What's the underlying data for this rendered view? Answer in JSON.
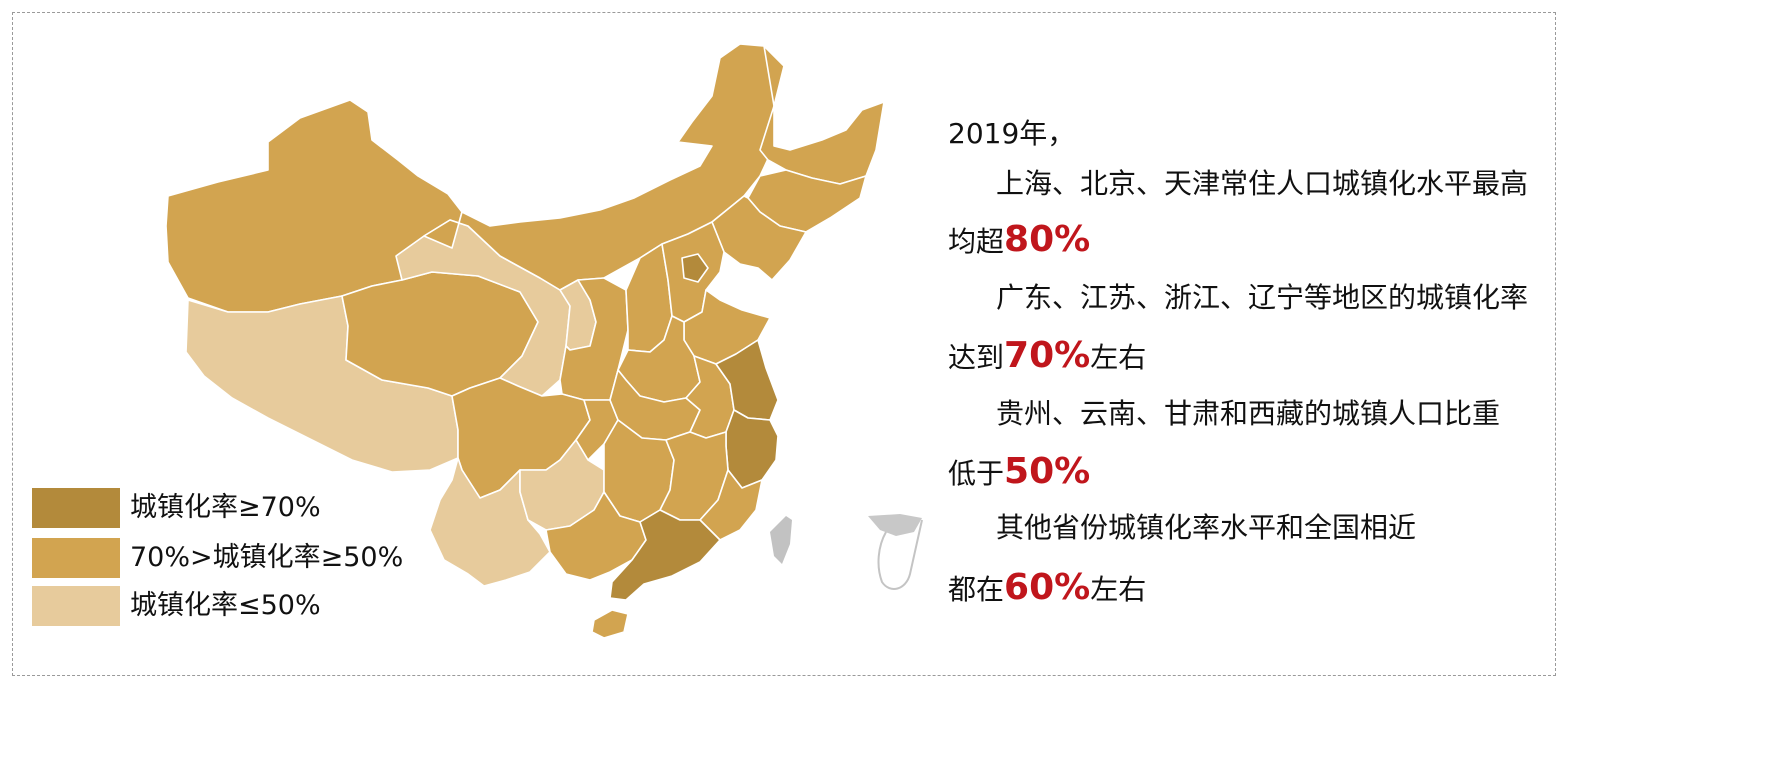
{
  "colors": {
    "level_high": "#b38a3b",
    "level_mid": "#d2a450",
    "level_low": "#e7cb9c",
    "border": "#ffffff",
    "taiwan": "#c2c2c2",
    "highlight": "#c0161c",
    "frame": "#9a9a9a"
  },
  "legend": [
    {
      "label": "城镇化率≥70%",
      "level": "high"
    },
    {
      "label": "70%>城镇化率≥50%",
      "level": "mid"
    },
    {
      "label": "城镇化率≤50%",
      "level": "low"
    }
  ],
  "text": {
    "year": "2019年，",
    "p1_line1": "上海、北京、天津常住人口城镇化水平最高",
    "p1_prefix": "均超",
    "p1_value": "80%",
    "p2_line1": "广东、江苏、浙江、辽宁等地区的城镇化率",
    "p2_prefix": "达到",
    "p2_value": "70%",
    "p2_suffix": "左右",
    "p3_line1": "贵州、云南、甘肃和西藏的城镇人口比重",
    "p3_prefix": "低于",
    "p3_value": "50%",
    "p4_line1": "其他省份城镇化率水平和全国相近",
    "p4_prefix": "都在",
    "p4_value": "60%",
    "p4_suffix": "左右"
  },
  "regions": [
    {
      "name": "xinjiang",
      "level": "mid"
    },
    {
      "name": "xizang",
      "level": "low"
    },
    {
      "name": "qinghai",
      "level": "mid"
    },
    {
      "name": "gansu",
      "level": "low"
    },
    {
      "name": "neimenggu",
      "level": "mid"
    },
    {
      "name": "heilongjiang",
      "level": "mid"
    },
    {
      "name": "jilin",
      "level": "mid"
    },
    {
      "name": "liaoning",
      "level": "mid"
    },
    {
      "name": "ningxia",
      "level": "low"
    },
    {
      "name": "shaanxi",
      "level": "mid"
    },
    {
      "name": "shanxi",
      "level": "mid"
    },
    {
      "name": "hebei",
      "level": "mid"
    },
    {
      "name": "beijing",
      "level": "high"
    },
    {
      "name": "shandong",
      "level": "mid"
    },
    {
      "name": "henan",
      "level": "mid"
    },
    {
      "name": "sichuan",
      "level": "mid"
    },
    {
      "name": "chongqing",
      "level": "mid"
    },
    {
      "name": "hubei",
      "level": "mid"
    },
    {
      "name": "anhui",
      "level": "mid"
    },
    {
      "name": "jiangsu",
      "level": "high"
    },
    {
      "name": "zhejiang",
      "level": "high"
    },
    {
      "name": "yunnan",
      "level": "low"
    },
    {
      "name": "guizhou",
      "level": "low"
    },
    {
      "name": "hunan",
      "level": "mid"
    },
    {
      "name": "jiangxi",
      "level": "mid"
    },
    {
      "name": "fujian",
      "level": "mid"
    },
    {
      "name": "guangxi",
      "level": "mid"
    },
    {
      "name": "guangdong",
      "level": "high"
    },
    {
      "name": "hainan",
      "level": "mid"
    }
  ]
}
